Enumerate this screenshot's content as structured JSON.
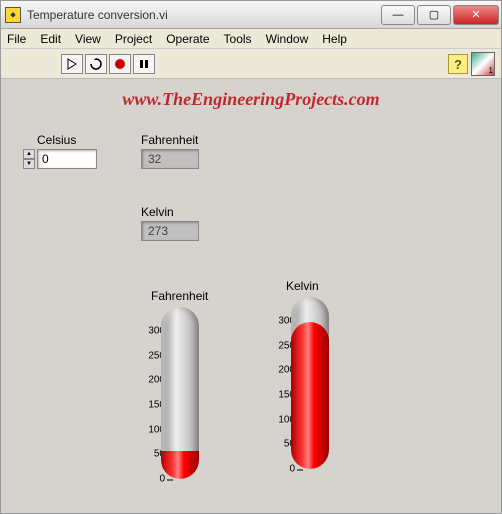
{
  "window": {
    "title": "Temperature conversion.vi",
    "minimize": "—",
    "maximize": "▢",
    "close": "✕"
  },
  "menu": {
    "file": "File",
    "edit": "Edit",
    "view": "View",
    "project": "Project",
    "operate": "Operate",
    "tools": "Tools",
    "window": "Window",
    "help": "Help"
  },
  "toolbar": {
    "run": "▷",
    "run_cont": "↻",
    "abort": "●",
    "pause": "❚❚",
    "help": "?"
  },
  "watermark": "www.TheEngineeringProjects.com",
  "controls": {
    "celsius": {
      "label": "Celsius",
      "value": "0"
    },
    "fahrenheit": {
      "label": "Fahrenheit",
      "value": "32"
    },
    "kelvin": {
      "label": "Kelvin",
      "value": "273"
    }
  },
  "thermometers": {
    "fahrenheit": {
      "label": "Fahrenheit",
      "scale_min": 0,
      "scale_max": 300,
      "ticks": [
        0,
        50,
        100,
        150,
        200,
        250,
        300
      ],
      "value": 32,
      "fill_color": "#e60000",
      "tube_color": "#a9b0bb"
    },
    "kelvin": {
      "label": "Kelvin",
      "scale_min": 0,
      "scale_max": 300,
      "ticks": [
        0,
        50,
        100,
        150,
        200,
        250,
        300
      ],
      "value": 273,
      "fill_color": "#e60000",
      "tube_color": "#a9b0bb"
    }
  },
  "colors": {
    "panel_bg": "#d6d3ce",
    "watermark": "#c1272d"
  }
}
